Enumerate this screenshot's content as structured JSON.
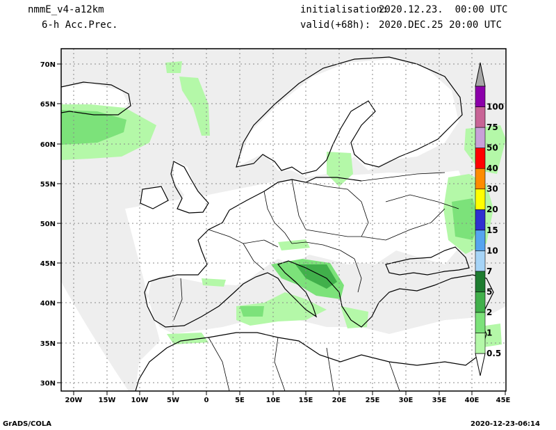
{
  "header": {
    "model": "nmmE_v4-a12km",
    "product": "6-h Acc.Prec.",
    "init_label": "initialisation:",
    "init_value": "2020.12.23.  00:00 UTC",
    "valid_label": "valid(+68h):",
    "valid_value": "2020.DEC.25 20:00 UTC"
  },
  "footer": {
    "left": "GrADS/COLA",
    "right": "2020-12-23-06:14"
  },
  "map": {
    "lat_labels": [
      "70N",
      "65N",
      "60N",
      "55N",
      "50N",
      "45N",
      "40N",
      "35N",
      "30N"
    ],
    "lon_labels": [
      "20W",
      "15W",
      "10W",
      "5W",
      "0",
      "5E",
      "10E",
      "15E",
      "20E",
      "25E",
      "30E",
      "35E",
      "40E",
      "45E"
    ],
    "lon_range": [
      -22,
      45
    ],
    "lat_range": [
      29,
      72
    ]
  },
  "colorbar": {
    "levels": [
      {
        "label": "0.5",
        "color": "#b4f8a8"
      },
      {
        "label": "1",
        "color": "#7ce27a"
      },
      {
        "label": "2",
        "color": "#41b04b"
      },
      {
        "label": "5",
        "color": "#1e7c30"
      },
      {
        "label": "7",
        "color": "#a6d4f7"
      },
      {
        "label": "10",
        "color": "#55a4ef"
      },
      {
        "label": "15",
        "color": "#2f2fd0"
      },
      {
        "label": "20",
        "color": "#ffff00"
      },
      {
        "label": "30",
        "color": "#ff8c00"
      },
      {
        "label": "40",
        "color": "#ff0000"
      },
      {
        "label": "50",
        "color": "#c8a0d8"
      },
      {
        "label": "75",
        "color": "#c86496"
      },
      {
        "label": "100",
        "color": "#8c00aa"
      }
    ],
    "over_color": "#a8a8a8"
  }
}
